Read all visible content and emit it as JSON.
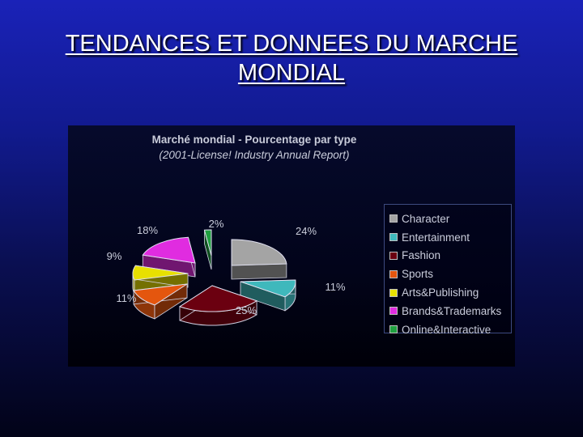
{
  "slide": {
    "title_line1": "TENDANCES ET DONNEES DU MARCHE",
    "title_line2": "MONDIAL"
  },
  "chart_data": {
    "type": "pie",
    "title": "Marché mondial - Pourcentage par type",
    "subtitle": "(2001-License! Industry Annual Report)",
    "legend_position": "right",
    "slices": [
      {
        "label": "Character",
        "value": 24,
        "value_label": "24%",
        "color": "#a4a4a4"
      },
      {
        "label": "Entertainment",
        "value": 11,
        "value_label": "11%",
        "color": "#3fb8bc"
      },
      {
        "label": "Fashion",
        "value": 25,
        "value_label": "25%",
        "color": "#6b0010"
      },
      {
        "label": "Sports",
        "value": 11,
        "value_label": "11%",
        "color": "#e4560e"
      },
      {
        "label": "Arts&Publishing",
        "value": 9,
        "value_label": "9%",
        "color": "#e8e000"
      },
      {
        "label": "Brands&Trademarks",
        "value": 18,
        "value_label": "18%",
        "color": "#e02ce0"
      },
      {
        "label": "Online&Interactive",
        "value": 2,
        "value_label": "2%",
        "color": "#20a040"
      }
    ]
  }
}
